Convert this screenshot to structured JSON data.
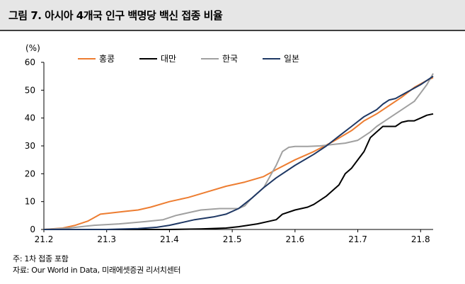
{
  "title": "그림 7. 아시아 4개국 인구 백명당 백신 접종 비율",
  "notes": {
    "note": "주: 1차 접종 포함",
    "source": "자료: Our World in Data, 미래에셋증권 리서치센터"
  },
  "chart_data": {
    "type": "line",
    "unit_label": "(%)",
    "xlim": [
      21.2,
      21.82
    ],
    "ylim": [
      0,
      60
    ],
    "xticks": [
      "21.2",
      "21.3",
      "21.4",
      "21.5",
      "21.6",
      "21.7",
      "21.8"
    ],
    "yticks": [
      "0",
      "10",
      "20",
      "30",
      "40",
      "50",
      "60"
    ],
    "legend_position": "top",
    "series": [
      {
        "name": "홍콩",
        "color": "#ed7d31",
        "points": [
          [
            21.2,
            0
          ],
          [
            21.23,
            0.5
          ],
          [
            21.25,
            1.5
          ],
          [
            21.27,
            3
          ],
          [
            21.29,
            5.5
          ],
          [
            21.31,
            6
          ],
          [
            21.33,
            6.5
          ],
          [
            21.35,
            7
          ],
          [
            21.37,
            8
          ],
          [
            21.4,
            10
          ],
          [
            21.43,
            11.5
          ],
          [
            21.46,
            13.5
          ],
          [
            21.49,
            15.5
          ],
          [
            21.52,
            17
          ],
          [
            21.55,
            19
          ],
          [
            21.57,
            21.5
          ],
          [
            21.6,
            25
          ],
          [
            21.63,
            28
          ],
          [
            21.66,
            31.5
          ],
          [
            21.69,
            35.5
          ],
          [
            21.71,
            39
          ],
          [
            21.73,
            41.5
          ],
          [
            21.75,
            44.5
          ],
          [
            21.77,
            47.5
          ],
          [
            21.79,
            51
          ],
          [
            21.81,
            53.5
          ],
          [
            21.82,
            54.5
          ]
        ]
      },
      {
        "name": "대만",
        "color": "#000000",
        "points": [
          [
            21.2,
            0
          ],
          [
            21.3,
            0
          ],
          [
            21.4,
            0
          ],
          [
            21.45,
            0.2
          ],
          [
            21.49,
            0.5
          ],
          [
            21.51,
            1
          ],
          [
            21.54,
            2
          ],
          [
            21.56,
            3
          ],
          [
            21.57,
            3.5
          ],
          [
            21.58,
            5.5
          ],
          [
            21.6,
            7
          ],
          [
            21.62,
            8
          ],
          [
            21.63,
            9
          ],
          [
            21.65,
            12
          ],
          [
            21.67,
            16
          ],
          [
            21.68,
            20
          ],
          [
            21.69,
            22
          ],
          [
            21.71,
            28
          ],
          [
            21.72,
            33
          ],
          [
            21.73,
            35
          ],
          [
            21.74,
            37
          ],
          [
            21.76,
            37
          ],
          [
            21.77,
            38.5
          ],
          [
            21.78,
            39
          ],
          [
            21.79,
            39
          ],
          [
            21.8,
            40
          ],
          [
            21.81,
            41
          ],
          [
            21.82,
            41.5
          ]
        ]
      },
      {
        "name": "한국",
        "color": "#a0a0a0",
        "points": [
          [
            21.2,
            0
          ],
          [
            21.24,
            0.5
          ],
          [
            21.28,
            1.5
          ],
          [
            21.32,
            2
          ],
          [
            21.36,
            2.8
          ],
          [
            21.39,
            3.5
          ],
          [
            21.41,
            5
          ],
          [
            21.43,
            6
          ],
          [
            21.45,
            7
          ],
          [
            21.48,
            7.5
          ],
          [
            21.51,
            7.5
          ],
          [
            21.52,
            8.5
          ],
          [
            21.53,
            11
          ],
          [
            21.55,
            15
          ],
          [
            21.57,
            23
          ],
          [
            21.58,
            28
          ],
          [
            21.59,
            29.5
          ],
          [
            21.6,
            29.8
          ],
          [
            21.62,
            29.8
          ],
          [
            21.64,
            30
          ],
          [
            21.66,
            30.5
          ],
          [
            21.68,
            31
          ],
          [
            21.7,
            32
          ],
          [
            21.72,
            35
          ],
          [
            21.73,
            37
          ],
          [
            21.75,
            40
          ],
          [
            21.77,
            43
          ],
          [
            21.79,
            46
          ],
          [
            21.8,
            49
          ],
          [
            21.81,
            52
          ],
          [
            21.82,
            56
          ]
        ]
      },
      {
        "name": "일본",
        "color": "#1f3864",
        "points": [
          [
            21.2,
            0
          ],
          [
            21.3,
            0
          ],
          [
            21.35,
            0.3
          ],
          [
            21.38,
            0.8
          ],
          [
            21.4,
            1.5
          ],
          [
            21.42,
            2.5
          ],
          [
            21.44,
            3.5
          ],
          [
            21.47,
            4.5
          ],
          [
            21.49,
            5.5
          ],
          [
            21.51,
            7.5
          ],
          [
            21.53,
            11
          ],
          [
            21.55,
            15
          ],
          [
            21.57,
            18.5
          ],
          [
            21.6,
            23
          ],
          [
            21.63,
            27
          ],
          [
            21.65,
            30
          ],
          [
            21.67,
            33.5
          ],
          [
            21.69,
            37
          ],
          [
            21.71,
            40.5
          ],
          [
            21.73,
            43
          ],
          [
            21.74,
            45
          ],
          [
            21.75,
            46.5
          ],
          [
            21.76,
            47
          ],
          [
            21.78,
            49.5
          ],
          [
            21.8,
            52
          ],
          [
            21.82,
            55
          ]
        ]
      }
    ]
  }
}
